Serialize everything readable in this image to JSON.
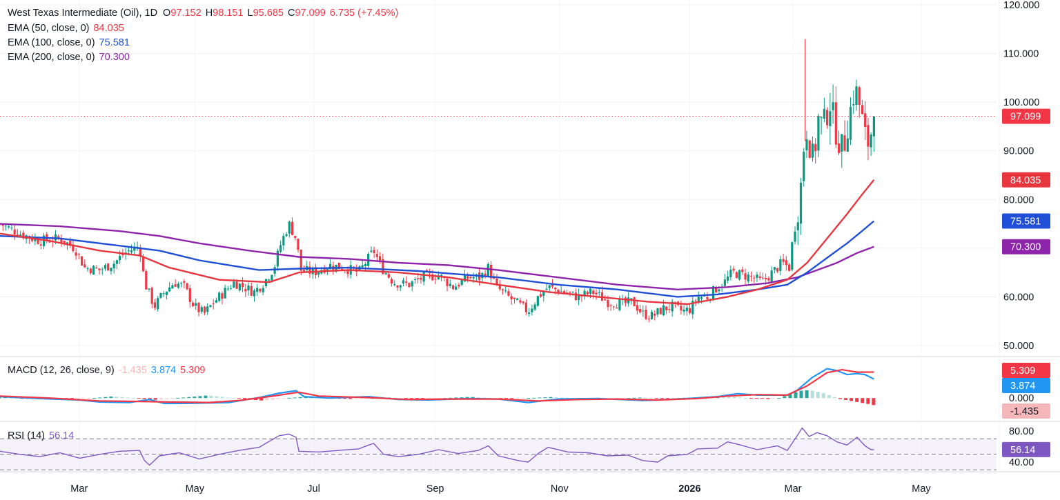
{
  "header": {
    "symbol": "West Texas Intermediate (Oil), 1D",
    "o_label": "O",
    "o_value": "97.152",
    "h_label": "H",
    "h_value": "98.151",
    "l_label": "L",
    "l_value": "95.685",
    "c_label": "C",
    "c_value": "97.099",
    "change": "6.735 (+7.45%)"
  },
  "ema": [
    {
      "label": "EMA (50, close, 0)",
      "value": "84.035",
      "color": "#e8363f"
    },
    {
      "label": "EMA (100, close, 0)",
      "value": "75.581",
      "color": "#1f4fd6"
    },
    {
      "label": "EMA (200, close, 0)",
      "value": "70.300",
      "color": "#8e24aa"
    }
  ],
  "macd_legend": {
    "label": "MACD (12, 26, close, 9)",
    "hist": "-1.435",
    "macd": "3.874",
    "signal": "5.309"
  },
  "rsi_legend": {
    "label": "RSI (14)",
    "value": "56.14"
  },
  "colors": {
    "up": "#089981",
    "down": "#f23645",
    "ema50": "#e8363f",
    "ema100": "#1f4fd6",
    "ema200": "#8e24aa",
    "macd": "#2196f3",
    "signal": "#f23645",
    "rsi": "#7e57c2"
  },
  "chart_data": {
    "type": "candlestick",
    "price_axis": {
      "ticks": [
        "50.000",
        "60.000",
        "70.000",
        "80.000",
        "90.000",
        "100.000",
        "110.000",
        "120.000"
      ],
      "range": [
        49,
        121
      ]
    },
    "time_axis": [
      "Mar",
      "May",
      "Jul",
      "Sep",
      "Nov",
      "2026",
      "Mar",
      "May"
    ],
    "time_axis_pos": [
      0.0795,
      0.1955,
      0.3148,
      0.4367,
      0.5615,
      0.6921,
      0.7957,
      0.9245
    ],
    "last_price": 97.099,
    "price_tags": [
      {
        "value": "97.099",
        "price": 97.099,
        "color": "#f23645"
      },
      {
        "value": "84.035",
        "price": 84.035,
        "color": "#e8363f"
      },
      {
        "value": "75.581",
        "price": 75.581,
        "color": "#1f4fd6"
      },
      {
        "value": "70.300",
        "price": 70.3,
        "color": "#8e24aa"
      }
    ],
    "close_path": [
      [
        0,
        75
      ],
      [
        0.02,
        73
      ],
      [
        0.04,
        71.5
      ],
      [
        0.06,
        72
      ],
      [
        0.075,
        70
      ],
      [
        0.085,
        66
      ],
      [
        0.1,
        65.5
      ],
      [
        0.115,
        67
      ],
      [
        0.125,
        69
      ],
      [
        0.135,
        70
      ],
      [
        0.14,
        70.5
      ],
      [
        0.145,
        63
      ],
      [
        0.155,
        58
      ],
      [
        0.165,
        61
      ],
      [
        0.175,
        63
      ],
      [
        0.185,
        62
      ],
      [
        0.195,
        58
      ],
      [
        0.205,
        56.5
      ],
      [
        0.215,
        59
      ],
      [
        0.225,
        61
      ],
      [
        0.235,
        63
      ],
      [
        0.245,
        62
      ],
      [
        0.255,
        61
      ],
      [
        0.265,
        63
      ],
      [
        0.275,
        66
      ],
      [
        0.282,
        71
      ],
      [
        0.29,
        75
      ],
      [
        0.297,
        72
      ],
      [
        0.302,
        65.5
      ],
      [
        0.315,
        65
      ],
      [
        0.33,
        66.5
      ],
      [
        0.345,
        66
      ],
      [
        0.36,
        65
      ],
      [
        0.37,
        68
      ],
      [
        0.375,
        69.5
      ],
      [
        0.383,
        66
      ],
      [
        0.395,
        63
      ],
      [
        0.41,
        62.5
      ],
      [
        0.425,
        64
      ],
      [
        0.44,
        64.5
      ],
      [
        0.455,
        62
      ],
      [
        0.47,
        64
      ],
      [
        0.482,
        64
      ],
      [
        0.49,
        66
      ],
      [
        0.498,
        62
      ],
      [
        0.51,
        60
      ],
      [
        0.52,
        58.5
      ],
      [
        0.53,
        57
      ],
      [
        0.54,
        60
      ],
      [
        0.55,
        62
      ],
      [
        0.565,
        61
      ],
      [
        0.58,
        60
      ],
      [
        0.595,
        61
      ],
      [
        0.61,
        59
      ],
      [
        0.625,
        58.5
      ],
      [
        0.635,
        59
      ],
      [
        0.645,
        56.5
      ],
      [
        0.655,
        56
      ],
      [
        0.665,
        57.5
      ],
      [
        0.675,
        58
      ],
      [
        0.685,
        57
      ],
      [
        0.693,
        57.5
      ],
      [
        0.7,
        60
      ],
      [
        0.71,
        60
      ],
      [
        0.72,
        62
      ],
      [
        0.727,
        63
      ],
      [
        0.735,
        65
      ],
      [
        0.745,
        64.5
      ],
      [
        0.755,
        64
      ],
      [
        0.765,
        63
      ],
      [
        0.775,
        65
      ],
      [
        0.785,
        67
      ],
      [
        0.792,
        66
      ],
      [
        0.795,
        71
      ],
      [
        0.8,
        77
      ],
      [
        0.805,
        85
      ],
      [
        0.808,
        96
      ],
      [
        0.812,
        92
      ],
      [
        0.817,
        87
      ],
      [
        0.82,
        97
      ],
      [
        0.826,
        95
      ],
      [
        0.833,
        100
      ],
      [
        0.84,
        93
      ],
      [
        0.846,
        90
      ],
      [
        0.852,
        97
      ],
      [
        0.858,
        103
      ],
      [
        0.863,
        99
      ],
      [
        0.868,
        93
      ],
      [
        0.874,
        90.5
      ],
      [
        0.872,
        91.5
      ],
      [
        0.877,
        97.1
      ]
    ],
    "ema50_path": [
      [
        0,
        73
      ],
      [
        0.05,
        71.5
      ],
      [
        0.1,
        69.5
      ],
      [
        0.14,
        68.5
      ],
      [
        0.17,
        66
      ],
      [
        0.22,
        63.5
      ],
      [
        0.27,
        63
      ],
      [
        0.3,
        65
      ],
      [
        0.35,
        65.5
      ],
      [
        0.4,
        65
      ],
      [
        0.45,
        64
      ],
      [
        0.5,
        62.5
      ],
      [
        0.55,
        61
      ],
      [
        0.6,
        60
      ],
      [
        0.65,
        59
      ],
      [
        0.69,
        58.5
      ],
      [
        0.73,
        60
      ],
      [
        0.76,
        61.5
      ],
      [
        0.79,
        63.5
      ],
      [
        0.81,
        67
      ],
      [
        0.83,
        72
      ],
      [
        0.85,
        77
      ],
      [
        0.865,
        81
      ],
      [
        0.877,
        84.035
      ]
    ],
    "ema100_path": [
      [
        0,
        72.5
      ],
      [
        0.06,
        72
      ],
      [
        0.12,
        70.5
      ],
      [
        0.16,
        69.5
      ],
      [
        0.2,
        67.5
      ],
      [
        0.26,
        65.5
      ],
      [
        0.3,
        65.8
      ],
      [
        0.35,
        66
      ],
      [
        0.42,
        65.3
      ],
      [
        0.5,
        64
      ],
      [
        0.56,
        62.5
      ],
      [
        0.62,
        61.5
      ],
      [
        0.68,
        60
      ],
      [
        0.72,
        60.5
      ],
      [
        0.76,
        61.5
      ],
      [
        0.79,
        62.5
      ],
      [
        0.81,
        65
      ],
      [
        0.83,
        68
      ],
      [
        0.85,
        71
      ],
      [
        0.865,
        73.5
      ],
      [
        0.877,
        75.581
      ]
    ],
    "ema200_path": [
      [
        0,
        75
      ],
      [
        0.06,
        74.5
      ],
      [
        0.12,
        73.5
      ],
      [
        0.16,
        72.5
      ],
      [
        0.2,
        71
      ],
      [
        0.25,
        69.5
      ],
      [
        0.3,
        68.2
      ],
      [
        0.35,
        67.8
      ],
      [
        0.4,
        67
      ],
      [
        0.45,
        66.5
      ],
      [
        0.5,
        65.5
      ],
      [
        0.56,
        64
      ],
      [
        0.62,
        62.5
      ],
      [
        0.68,
        61.5
      ],
      [
        0.73,
        62
      ],
      [
        0.77,
        62.8
      ],
      [
        0.8,
        64
      ],
      [
        0.82,
        65.5
      ],
      [
        0.84,
        67
      ],
      [
        0.86,
        69
      ],
      [
        0.877,
        70.3
      ]
    ],
    "macd": {
      "range": [
        -3.5,
        7.5
      ],
      "zero_label": "0.000",
      "tags": [
        {
          "value": "5.309",
          "v": 5.309,
          "color": "#f23645"
        },
        {
          "value": "3.874",
          "v": 3.874,
          "color": "#2196f3"
        },
        {
          "value": "-1.435",
          "v": -1.435,
          "color": "#f5b7b9"
        }
      ],
      "macd_path": [
        [
          0,
          0.3
        ],
        [
          0.04,
          -0.1
        ],
        [
          0.08,
          -0.4
        ],
        [
          0.1,
          -0.8
        ],
        [
          0.13,
          -0.9
        ],
        [
          0.15,
          -0.3
        ],
        [
          0.165,
          -1.1
        ],
        [
          0.18,
          -1.1
        ],
        [
          0.21,
          -1.0
        ],
        [
          0.23,
          -0.9
        ],
        [
          0.26,
          0.1
        ],
        [
          0.28,
          1.0
        ],
        [
          0.297,
          1.5
        ],
        [
          0.305,
          0.3
        ],
        [
          0.33,
          0.0
        ],
        [
          0.37,
          0.3
        ],
        [
          0.4,
          -0.3
        ],
        [
          0.43,
          -0.4
        ],
        [
          0.47,
          -0.1
        ],
        [
          0.5,
          -0.2
        ],
        [
          0.53,
          -0.9
        ],
        [
          0.56,
          -0.2
        ],
        [
          0.6,
          -0.1
        ],
        [
          0.645,
          -0.5
        ],
        [
          0.66,
          -0.4
        ],
        [
          0.69,
          -0.1
        ],
        [
          0.72,
          0.3
        ],
        [
          0.74,
          0.9
        ],
        [
          0.76,
          0.6
        ],
        [
          0.79,
          0.6
        ],
        [
          0.8,
          1.6
        ],
        [
          0.815,
          4.2
        ],
        [
          0.83,
          6.0
        ],
        [
          0.84,
          5.6
        ],
        [
          0.85,
          4.8
        ],
        [
          0.86,
          5.0
        ],
        [
          0.868,
          4.8
        ],
        [
          0.877,
          3.874
        ]
      ],
      "signal_path": [
        [
          0,
          0.4
        ],
        [
          0.05,
          0.0
        ],
        [
          0.1,
          -0.6
        ],
        [
          0.14,
          -0.7
        ],
        [
          0.17,
          -0.8
        ],
        [
          0.21,
          -0.9
        ],
        [
          0.24,
          -0.5
        ],
        [
          0.27,
          0.3
        ],
        [
          0.3,
          1.2
        ],
        [
          0.32,
          0.4
        ],
        [
          0.37,
          0.1
        ],
        [
          0.41,
          -0.3
        ],
        [
          0.45,
          -0.2
        ],
        [
          0.5,
          -0.2
        ],
        [
          0.54,
          -0.6
        ],
        [
          0.58,
          -0.3
        ],
        [
          0.62,
          -0.2
        ],
        [
          0.66,
          -0.4
        ],
        [
          0.7,
          -0.1
        ],
        [
          0.73,
          0.4
        ],
        [
          0.76,
          0.7
        ],
        [
          0.79,
          0.6
        ],
        [
          0.81,
          2.5
        ],
        [
          0.83,
          5.2
        ],
        [
          0.845,
          5.8
        ],
        [
          0.86,
          5.3
        ],
        [
          0.877,
          5.309
        ]
      ],
      "histogram": [
        0.1,
        0.15,
        0.1,
        0.05,
        -0.05,
        -0.1,
        -0.15,
        -0.2,
        -0.15,
        -0.1,
        -0.05,
        -0.1,
        -0.15,
        -0.2,
        -0.15,
        -0.1,
        -0.05,
        0.0,
        0.1,
        0.2,
        0.3,
        0.25,
        0.2,
        0.1,
        0.0,
        -0.1,
        -0.2,
        -0.3,
        -0.35,
        -0.3,
        -0.2,
        -0.1,
        0.05,
        0.1,
        0.2,
        0.3,
        0.4,
        0.5,
        0.45,
        0.35,
        0.25,
        0.1,
        0.0,
        -0.1,
        -0.2,
        -0.3,
        -0.4,
        -0.5,
        -0.45,
        -0.35,
        -0.2,
        -0.1,
        0.05,
        0.1,
        0.2,
        0.3,
        0.35,
        0.3,
        0.2,
        0.1,
        0.0,
        -0.1,
        -0.15,
        -0.2,
        -0.15,
        -0.1,
        -0.05,
        0.0,
        0.05,
        0.1,
        0.1,
        0.05,
        0.0,
        -0.05,
        -0.1,
        -0.15,
        -0.2,
        -0.15,
        -0.1,
        -0.05,
        0.0,
        0.05,
        0.1,
        0.15,
        0.2,
        0.2,
        0.15,
        0.1,
        0.05,
        0.0,
        -0.05,
        -0.1,
        -0.15,
        -0.1,
        -0.05,
        0.0,
        0.05,
        0.1,
        0.15,
        0.2,
        0.15,
        0.1,
        0.05,
        0.0,
        -0.05,
        -0.1,
        -0.15,
        -0.2,
        -0.25,
        -0.2,
        -0.15,
        -0.1,
        -0.05,
        0.0,
        0.05,
        0.1,
        0.05,
        0.0,
        -0.05,
        -0.1,
        -0.1,
        -0.05,
        0.0,
        0.05,
        0.1,
        0.15,
        0.2,
        0.25,
        0.3,
        0.35,
        0.3,
        0.25,
        0.2,
        0.1,
        0.0,
        -0.05,
        -0.1,
        -0.15,
        -0.2,
        -0.1,
        0.0,
        0.4,
        0.8,
        1.2,
        1.5,
        1.6,
        1.5,
        1.3,
        1.0,
        0.6,
        0.2,
        -0.2,
        -0.4,
        -0.6,
        -0.8,
        -1.0,
        -1.2,
        -1.435
      ]
    },
    "rsi": {
      "range": [
        32,
        88
      ],
      "ticks": [
        "40.00",
        "80.00"
      ],
      "tag": {
        "value": "56.14",
        "v": 56.14,
        "color": "#7e57c2"
      },
      "path": [
        [
          0,
          54
        ],
        [
          0.02,
          50
        ],
        [
          0.04,
          47
        ],
        [
          0.06,
          52
        ],
        [
          0.08,
          45
        ],
        [
          0.1,
          50
        ],
        [
          0.12,
          54
        ],
        [
          0.14,
          55
        ],
        [
          0.145,
          42
        ],
        [
          0.15,
          36
        ],
        [
          0.16,
          48
        ],
        [
          0.18,
          52
        ],
        [
          0.2,
          44
        ],
        [
          0.22,
          50
        ],
        [
          0.24,
          55
        ],
        [
          0.26,
          59
        ],
        [
          0.28,
          74
        ],
        [
          0.29,
          76
        ],
        [
          0.297,
          72
        ],
        [
          0.3,
          54
        ],
        [
          0.32,
          53
        ],
        [
          0.34,
          55
        ],
        [
          0.36,
          57
        ],
        [
          0.37,
          62
        ],
        [
          0.375,
          64
        ],
        [
          0.385,
          50
        ],
        [
          0.4,
          47
        ],
        [
          0.42,
          50
        ],
        [
          0.44,
          56
        ],
        [
          0.46,
          51
        ],
        [
          0.48,
          55
        ],
        [
          0.49,
          61
        ],
        [
          0.5,
          48
        ],
        [
          0.52,
          42
        ],
        [
          0.53,
          40
        ],
        [
          0.54,
          51
        ],
        [
          0.55,
          59
        ],
        [
          0.57,
          53
        ],
        [
          0.59,
          52
        ],
        [
          0.61,
          48
        ],
        [
          0.63,
          49
        ],
        [
          0.645,
          42
        ],
        [
          0.66,
          40
        ],
        [
          0.67,
          48
        ],
        [
          0.69,
          50
        ],
        [
          0.7,
          57
        ],
        [
          0.72,
          58
        ],
        [
          0.73,
          66
        ],
        [
          0.74,
          63
        ],
        [
          0.76,
          56
        ],
        [
          0.78,
          61
        ],
        [
          0.79,
          55
        ],
        [
          0.8,
          74
        ],
        [
          0.805,
          84
        ],
        [
          0.812,
          73
        ],
        [
          0.82,
          78
        ],
        [
          0.83,
          74
        ],
        [
          0.84,
          66
        ],
        [
          0.85,
          62
        ],
        [
          0.86,
          72
        ],
        [
          0.868,
          61
        ],
        [
          0.874,
          56
        ],
        [
          0.877,
          56.14
        ]
      ]
    }
  }
}
